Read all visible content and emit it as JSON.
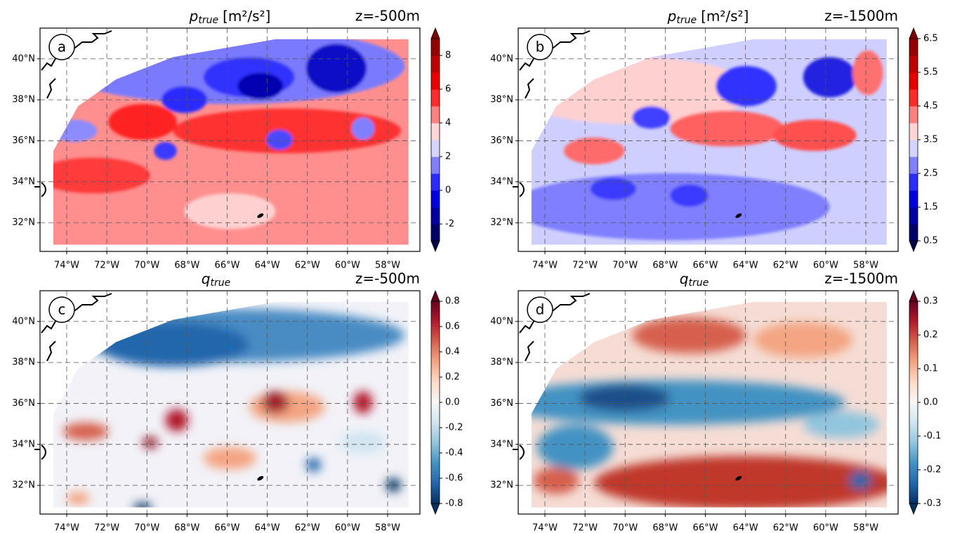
{
  "panels": [
    {
      "label": "a",
      "title": {
        "var": "p",
        "sub": "true",
        "unit": "[m²/s²]"
      },
      "depth": "z=-500m",
      "colorbar": {
        "colormap": "seismic",
        "style": "discrete",
        "clim": [
          -3,
          9
        ],
        "ticks": [
          -2,
          0,
          2,
          4,
          6,
          8
        ]
      }
    },
    {
      "label": "b",
      "title": {
        "var": "p",
        "sub": "true",
        "unit": "[m²/s²]"
      },
      "depth": "z=-1500m",
      "colorbar": {
        "colormap": "seismic",
        "style": "discrete",
        "clim": [
          0.5,
          6.5
        ],
        "ticks": [
          0.5,
          1.5,
          2.5,
          3.5,
          4.5,
          5.5,
          6.5
        ]
      }
    },
    {
      "label": "c",
      "title": {
        "var": "q",
        "sub": "true"
      },
      "depth": "z=-500m",
      "colorbar": {
        "colormap": "RdBu_r",
        "style": "continuous",
        "clim": [
          -0.8,
          0.8
        ],
        "ticks": [
          -0.8,
          -0.6,
          -0.4,
          -0.2,
          {
            "value": 0,
            "label": "0.0"
          },
          0.2,
          0.4,
          0.6,
          0.8
        ]
      }
    },
    {
      "label": "d",
      "title": {
        "var": "q",
        "sub": "true"
      },
      "depth": "z=-1500m",
      "colorbar": {
        "colormap": "RdBu_r",
        "style": "continuous",
        "clim": [
          -0.3,
          0.3
        ],
        "ticks": [
          -0.3,
          -0.2,
          -0.1,
          {
            "value": 0,
            "label": "0.0"
          },
          0.1,
          0.2,
          0.3
        ]
      }
    }
  ],
  "xlim": [
    -75.33,
    -56.39
  ],
  "ylim": [
    30.6,
    41.5
  ],
  "lon_ticks": [
    {
      "value": -74,
      "label": "74°W"
    },
    {
      "value": -72,
      "label": "72°W"
    },
    {
      "value": -70,
      "label": "70°W"
    },
    {
      "value": -68,
      "label": "68°W"
    },
    {
      "value": -66,
      "label": "66°W"
    },
    {
      "value": -64,
      "label": "64°W"
    },
    {
      "value": -62,
      "label": "62°W"
    },
    {
      "value": -60,
      "label": "60°W"
    },
    {
      "value": -58,
      "label": "58°W"
    }
  ],
  "lat_ticks": [
    {
      "value": 32,
      "label": "32°N"
    },
    {
      "value": 34,
      "label": "34°N"
    },
    {
      "value": 36,
      "label": "36°N"
    },
    {
      "value": 38,
      "label": "38°N"
    },
    {
      "value": 40,
      "label": "40°N"
    }
  ],
  "grid": true
}
